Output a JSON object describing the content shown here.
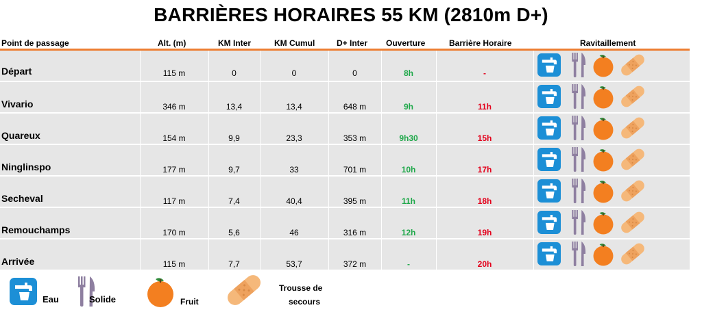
{
  "title": "BARRIÈRES HORAIRES 55 KM (2810m D+)",
  "headers": {
    "point": "Point de passage",
    "alt": "Alt. (m)",
    "km_inter": "KM Inter",
    "km_cumul": "KM Cumul",
    "d_inter": "D+ Inter",
    "ouverture": "Ouverture",
    "barriere": "Barrière Horaire",
    "ravito": "Ravitaillement"
  },
  "rows": [
    {
      "point": "Départ",
      "alt": "115 m",
      "km_inter": "0",
      "km_cumul": "0",
      "d_inter": "0",
      "ouverture": "8h",
      "barriere": "-",
      "ravito": [
        "water-icon",
        "cutlery-icon",
        "orange-icon",
        "bandage-icon"
      ]
    },
    {
      "point": "Vivario",
      "alt": "346 m",
      "km_inter": "13,4",
      "km_cumul": "13,4",
      "d_inter": "648 m",
      "ouverture": "9h",
      "barriere": "11h",
      "ravito": [
        "water-icon",
        "cutlery-icon",
        "orange-icon",
        "bandage-icon"
      ]
    },
    {
      "point": "Quareux",
      "alt": "154 m",
      "km_inter": "9,9",
      "km_cumul": "23,3",
      "d_inter": "353 m",
      "ouverture": "9h30",
      "barriere": "15h",
      "ravito": [
        "water-icon",
        "cutlery-icon",
        "orange-icon",
        "bandage-icon"
      ]
    },
    {
      "point": "Ninglinspo",
      "alt": "177 m",
      "km_inter": "9,7",
      "km_cumul": "33",
      "d_inter": "701 m",
      "ouverture": "10h",
      "barriere": "17h",
      "ravito": [
        "water-icon",
        "cutlery-icon",
        "orange-icon",
        "bandage-icon"
      ]
    },
    {
      "point": "Secheval",
      "alt": "117 m",
      "km_inter": "7,4",
      "km_cumul": "40,4",
      "d_inter": "395 m",
      "ouverture": "11h",
      "barriere": "18h",
      "ravito": [
        "water-icon",
        "cutlery-icon",
        "orange-icon",
        "bandage-icon"
      ]
    },
    {
      "point": "Remouchamps",
      "alt": "170 m",
      "km_inter": "5,6",
      "km_cumul": "46",
      "d_inter": "316 m",
      "ouverture": "12h",
      "barriere": "19h",
      "ravito": [
        "water-icon",
        "cutlery-icon",
        "orange-icon",
        "bandage-icon"
      ]
    },
    {
      "point": "Arrivée",
      "alt": "115 m",
      "km_inter": "7,7",
      "km_cumul": "53,7",
      "d_inter": "372 m",
      "ouverture": "-",
      "barriere": "20h",
      "ravito": [
        "water-icon",
        "cutlery-icon",
        "orange-icon",
        "bandage-icon"
      ]
    }
  ],
  "legend": {
    "eau": "Eau",
    "solide": "Solide",
    "fruit": "Fruit",
    "trousse_line1": "Trousse de",
    "trousse_line2": "secours"
  },
  "colors": {
    "accent_line": "#ed7d31",
    "row_bg": "#e6e6e6",
    "ouverture": "#1fa84a",
    "barriere": "#e3001b",
    "water_tile": "#1c8fd6",
    "cutlery": "#8e7fa0",
    "orange": "#f37f20",
    "bandage": "#f5b87a"
  }
}
